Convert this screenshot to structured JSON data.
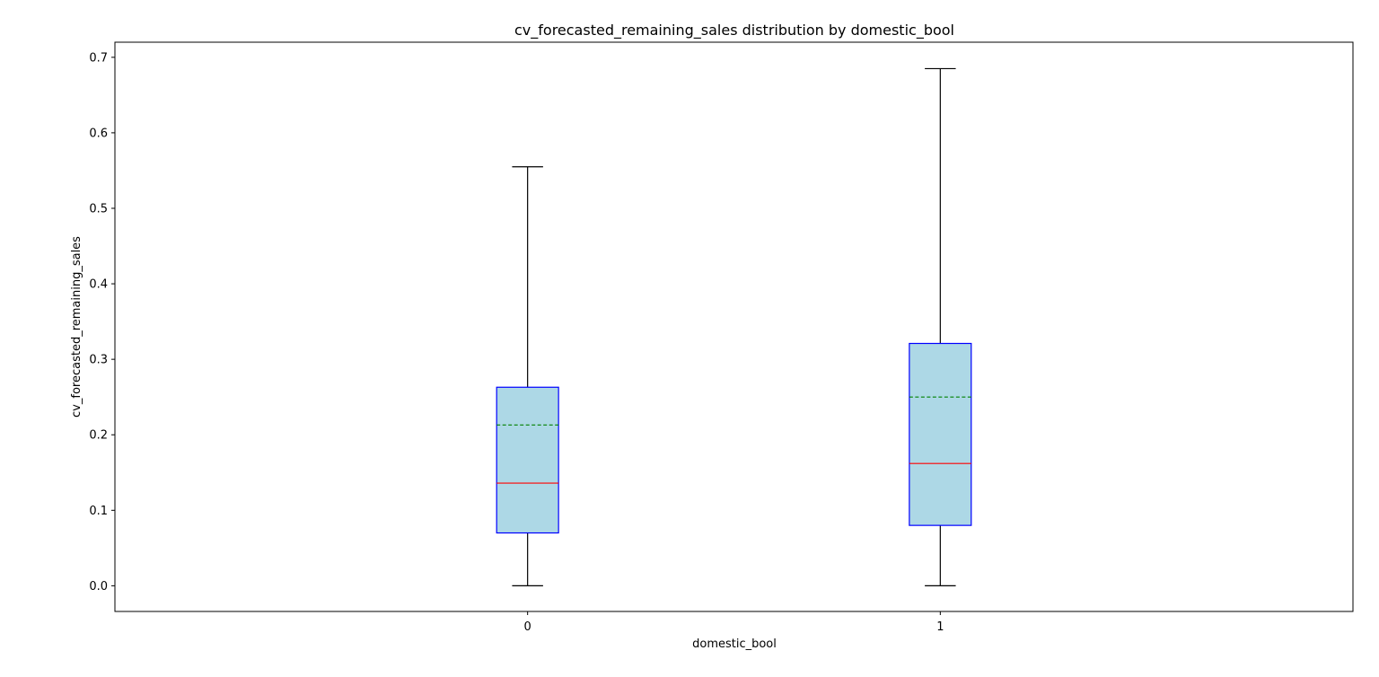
{
  "chart_data": {
    "type": "box",
    "title": "cv_forecasted_remaining_sales distribution by domestic_bool",
    "xlabel": "domestic_bool",
    "ylabel": "cv_forecasted_remaining_sales",
    "categories": [
      "0",
      "1"
    ],
    "ylim": [
      -0.034,
      0.72
    ],
    "yticks": [
      0.0,
      0.1,
      0.2,
      0.3,
      0.4,
      0.5,
      0.6,
      0.7
    ],
    "ytick_labels": [
      "0.0",
      "0.1",
      "0.2",
      "0.3",
      "0.4",
      "0.5",
      "0.6",
      "0.7"
    ],
    "grid": false,
    "boxes": [
      {
        "category": "0",
        "whisker_low": 0.0,
        "q1": 0.07,
        "median": 0.136,
        "mean": 0.213,
        "q3": 0.263,
        "whisker_high": 0.555
      },
      {
        "category": "1",
        "whisker_low": 0.0,
        "q1": 0.08,
        "median": 0.162,
        "mean": 0.25,
        "q3": 0.321,
        "whisker_high": 0.685
      }
    ],
    "colors": {
      "box_fill": "#add8e6",
      "box_edge": "#0000ff",
      "median": "#ff0000",
      "mean": "#008000",
      "whisker": "#000000"
    }
  }
}
